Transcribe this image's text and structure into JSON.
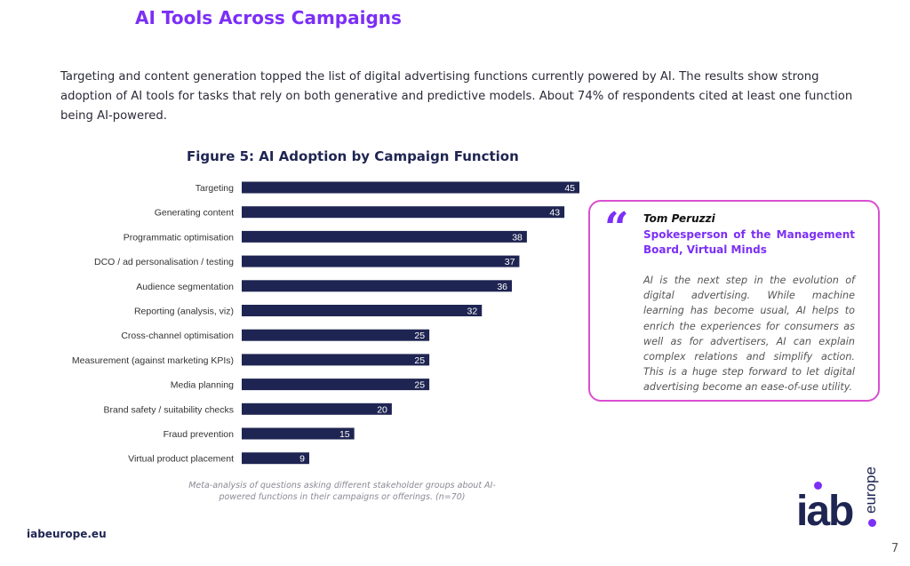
{
  "header": {
    "title": "AI Tools Across Campaigns"
  },
  "intro": "Targeting and content generation topped the list of digital advertising functions currently powered by AI. The results show strong adoption of AI tools for tasks that rely on both generative and predictive models. About 74% of respondents cited at least one function being AI-powered.",
  "chart_data": {
    "type": "bar",
    "orientation": "horizontal",
    "title": "Figure 5: AI Adoption by Campaign Function",
    "categories": [
      "Targeting",
      "Generating content",
      "Programmatic optimisation",
      "DCO / ad personalisation / testing",
      "Audience segmentation",
      "Reporting (analysis, viz)",
      "Cross-channel optimisation",
      "Measurement (against marketing KPIs)",
      "Media planning",
      "Brand safety / suitability checks",
      "Fraud prevention",
      "Virtual product placement"
    ],
    "values": [
      45,
      43,
      38,
      37,
      36,
      32,
      25,
      25,
      25,
      20,
      15,
      9
    ],
    "xlim": [
      0,
      45
    ],
    "grid": false,
    "bar_color": "#1f2552",
    "note": "Meta-analysis of questions asking different stakeholder groups about AI-powered functions in their campaigns or offerings. (n=70)"
  },
  "quote": {
    "name": "Tom Peruzzi",
    "role": "Spokesperson of the Management Board, Virtual Minds",
    "text": "AI is the next step in the evolution of digital advertising. While machine learning has become usual, AI helps to enrich the experiences for consumers as well as for advertisers, AI can explain complex relations and simplify action. This is a huge step forward to let digital advertising become an ease-of-use utility."
  },
  "footer": {
    "site": "iabeurope.eu",
    "page": "7"
  },
  "logo": {
    "main": "iab",
    "sub": "europe"
  },
  "colors": {
    "accent": "#7b2ff7",
    "border": "#d94fd0",
    "navy": "#1f2552"
  }
}
